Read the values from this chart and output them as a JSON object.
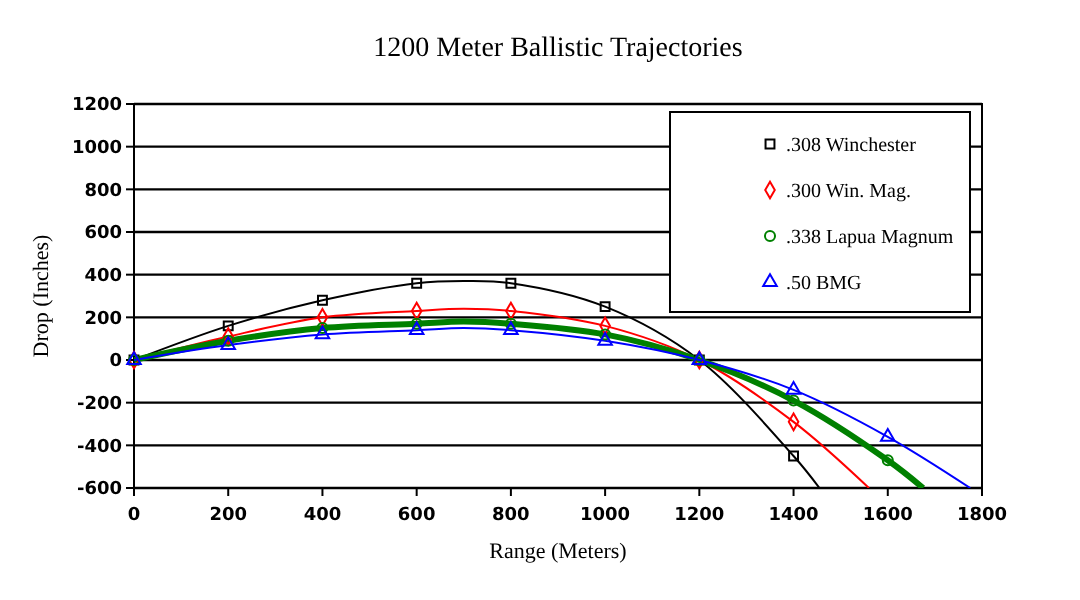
{
  "chart_data": {
    "type": "line",
    "title": "1200 Meter Ballistic Trajectories",
    "xlabel": "Range (Meters)",
    "ylabel": "Drop (Inches)",
    "xlim": [
      0,
      1800
    ],
    "xticks": [
      0,
      200,
      400,
      600,
      800,
      1000,
      1200,
      1400,
      1600,
      1800
    ],
    "ylim": [
      -600,
      1200
    ],
    "yticks": [
      -600,
      -400,
      -200,
      0,
      200,
      400,
      600,
      800,
      1000,
      1200
    ],
    "grid": "y",
    "legend": "top right",
    "series": [
      {
        "marker": "none",
        "color": "#000000",
        "x": [
          0,
          200,
          400,
          600,
          700,
          800,
          1000,
          1200,
          1400,
          1455
        ],
        "values": [
          0,
          160,
          280,
          360,
          370,
          360,
          250,
          0,
          -450,
          -600
        ]
      },
      {
        "marker": "none",
        "color": "#ff0000",
        "x": [
          0,
          200,
          400,
          600,
          700,
          800,
          1000,
          1200,
          1400,
          1560
        ],
        "values": [
          0,
          110,
          200,
          230,
          240,
          230,
          160,
          0,
          -290,
          -600
        ]
      },
      {
        "marker": "none",
        "color": "#008000",
        "x": [
          0,
          200,
          400,
          600,
          700,
          800,
          1000,
          1200,
          1400,
          1600,
          1675
        ],
        "values": [
          0,
          90,
          150,
          170,
          180,
          170,
          120,
          0,
          -190,
          -470,
          -600
        ]
      },
      {
        "marker": "none",
        "color": "#0000ff",
        "x": [
          0,
          200,
          400,
          600,
          700,
          800,
          1000,
          1200,
          1400,
          1600,
          1775
        ],
        "values": [
          0,
          70,
          120,
          140,
          150,
          140,
          90,
          0,
          -140,
          -360,
          -600
        ]
      },
      {
        "type": "scatter",
        "name": ".308 Winchester",
        "marker": "square",
        "color": "#000000",
        "x": [
          0,
          200,
          400,
          600,
          800,
          1000,
          1200,
          1400
        ],
        "values": [
          0,
          160,
          280,
          360,
          360,
          250,
          0,
          -450
        ]
      },
      {
        "type": "scatter",
        "name": ".300 Win. Mag.",
        "marker": "diamond",
        "color": "#ff0000",
        "x": [
          0,
          200,
          400,
          600,
          800,
          1000,
          1200,
          1400
        ],
        "values": [
          0,
          110,
          200,
          230,
          230,
          160,
          0,
          -290
        ]
      },
      {
        "type": "scatter",
        "name": ".338 Lapua Magnum",
        "marker": "circle",
        "color": "#008000",
        "x": [
          0,
          200,
          400,
          600,
          800,
          1000,
          1200,
          1400,
          1600
        ],
        "values": [
          0,
          90,
          150,
          170,
          170,
          120,
          0,
          -190,
          -470
        ]
      },
      {
        "type": "scatter",
        "name": ".50 BMG",
        "marker": "triangle",
        "color": "#0000ff",
        "x": [
          0,
          200,
          400,
          600,
          800,
          1000,
          1200,
          1400,
          1600
        ],
        "values": [
          0,
          70,
          120,
          140,
          140,
          90,
          0,
          -140,
          -360
        ]
      }
    ]
  }
}
